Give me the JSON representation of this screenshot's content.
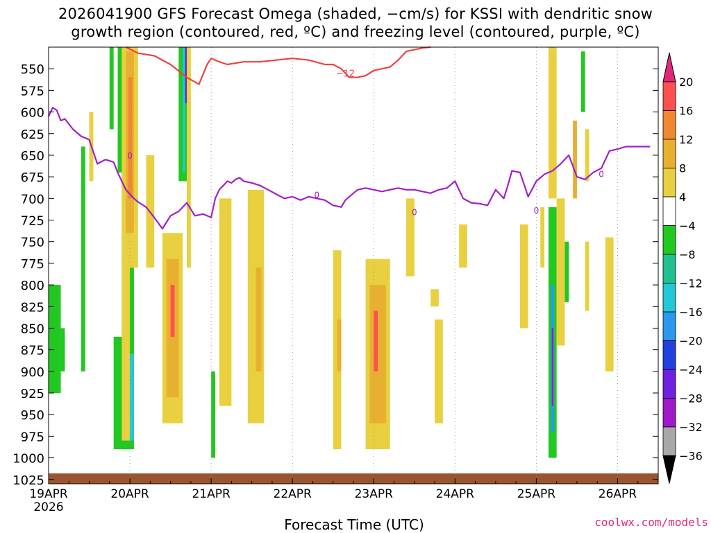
{
  "title": {
    "line1": "2026041900 GFS Forecast Omega (shaded, −cm/s) for KSSI with dendritic snow",
    "line2": "growth region (contoured, red, ºC) and freezing level (contoured, purple, ºC)"
  },
  "credit": "coolwx.com/models",
  "chart_data": {
    "type": "heatmap",
    "title": "2026041900 GFS Forecast Omega (shaded, −cm/s) for KSSI with dendritic snow growth region (contoured, red, ºC) and freezing level (contoured, purple, ºC)",
    "xlabel": "Forecast Time (UTC)",
    "ylabel": "",
    "x_ticks": [
      "19APR\n2026",
      "20APR",
      "21APR",
      "22APR",
      "23APR",
      "24APR",
      "25APR",
      "26APR"
    ],
    "x_tick_labels": [
      {
        "label": "19APR",
        "sub": "2026"
      },
      {
        "label": "20APR",
        "sub": ""
      },
      {
        "label": "21APR",
        "sub": ""
      },
      {
        "label": "22APR",
        "sub": ""
      },
      {
        "label": "23APR",
        "sub": ""
      },
      {
        "label": "24APR",
        "sub": ""
      },
      {
        "label": "25APR",
        "sub": ""
      },
      {
        "label": "26APR",
        "sub": ""
      }
    ],
    "xlim_days": [
      0,
      7.5
    ],
    "y_ticks": [
      550,
      575,
      600,
      625,
      650,
      675,
      700,
      725,
      750,
      775,
      800,
      825,
      850,
      875,
      900,
      925,
      950,
      975,
      1000,
      1025
    ],
    "ylim_hpa": [
      525,
      1030
    ],
    "colorbar": {
      "labels": [
        "20",
        "16",
        "12",
        "8",
        "4",
        "−4",
        "−8",
        "−12",
        "−16",
        "−20",
        "−24",
        "−28",
        "−32",
        "−36"
      ],
      "colors": [
        "#ff5050",
        "#f08830",
        "#e8b030",
        "#e8d040",
        "#ffffff",
        "#22c822",
        "#20c090",
        "#20c8d8",
        "#2898f0",
        "#2040e0",
        "#7020e0",
        "#a018c8",
        "#a8a8a8"
      ],
      "top_color": "#e0287a",
      "bottom_color": "#000000"
    },
    "contour_labels": {
      "dgz": "−12",
      "freezing": "0"
    },
    "dgz_line": {
      "color": "#f04040",
      "x": [
        0.95,
        1.1,
        1.3,
        1.5,
        1.7,
        1.85,
        1.95,
        2.0,
        2.1,
        2.2,
        2.4,
        2.6,
        2.8,
        3.0,
        3.2,
        3.4,
        3.5,
        3.6,
        3.7,
        3.8,
        3.9,
        4.0,
        4.1,
        4.2,
        4.3,
        4.4,
        4.5,
        4.6,
        4.7
      ],
      "y": [
        525,
        532,
        535,
        545,
        560,
        568,
        545,
        538,
        542,
        545,
        542,
        542,
        540,
        538,
        540,
        545,
        545,
        550,
        560,
        560,
        558,
        552,
        550,
        548,
        540,
        530,
        528,
        526,
        525
      ]
    },
    "freezing_line": {
      "color": "#a020c8",
      "x": [
        0.0,
        0.05,
        0.1,
        0.15,
        0.2,
        0.3,
        0.4,
        0.5,
        0.6,
        0.7,
        0.8,
        0.85,
        0.9,
        0.95,
        1.0,
        1.05,
        1.1,
        1.2,
        1.3,
        1.4,
        1.5,
        1.6,
        1.7,
        1.8,
        1.9,
        2.0,
        2.05,
        2.1,
        2.15,
        2.2,
        2.25,
        2.3,
        2.35,
        2.4,
        2.5,
        2.6,
        2.7,
        2.8,
        2.9,
        3.0,
        3.1,
        3.2,
        3.3,
        3.4,
        3.5,
        3.6,
        3.65,
        3.7,
        3.75,
        3.8,
        3.9,
        4.0,
        4.1,
        4.2,
        4.3,
        4.4,
        4.5,
        4.6,
        4.7,
        4.8,
        4.9,
        5.0,
        5.1,
        5.2,
        5.3,
        5.4,
        5.5,
        5.6,
        5.65,
        5.7,
        5.8,
        5.9,
        6.0,
        6.1,
        6.2,
        6.3,
        6.4,
        6.5,
        6.6,
        6.7,
        6.8,
        6.9,
        7.0,
        7.1,
        7.2,
        7.3,
        7.4
      ],
      "y": [
        605,
        595,
        598,
        610,
        608,
        620,
        628,
        632,
        660,
        655,
        658,
        670,
        680,
        690,
        695,
        700,
        704,
        710,
        722,
        735,
        720,
        715,
        705,
        720,
        718,
        722,
        700,
        690,
        685,
        680,
        682,
        678,
        676,
        680,
        682,
        685,
        690,
        695,
        700,
        698,
        702,
        698,
        700,
        702,
        708,
        710,
        702,
        698,
        694,
        690,
        688,
        690,
        692,
        690,
        688,
        690,
        690,
        692,
        694,
        690,
        688,
        680,
        700,
        705,
        706,
        708,
        690,
        700,
        685,
        668,
        670,
        698,
        680,
        672,
        668,
        660,
        650,
        675,
        678,
        670,
        665,
        645,
        643,
        640,
        640,
        640,
        640
      ]
    },
    "omega_cells": [
      {
        "x0": 0.0,
        "x1": 0.15,
        "p0": 800,
        "p1": 925,
        "level": -5
      },
      {
        "x0": 0.15,
        "x1": 0.2,
        "p0": 850,
        "p1": 900,
        "level": -8
      },
      {
        "x0": 0.4,
        "x1": 0.45,
        "p0": 640,
        "p1": 900,
        "level": -5
      },
      {
        "x0": 0.5,
        "x1": 0.55,
        "p0": 600,
        "p1": 680,
        "level": 5
      },
      {
        "x0": 0.75,
        "x1": 0.8,
        "p0": 525,
        "p1": 620,
        "level": -5
      },
      {
        "x0": 0.85,
        "x1": 0.95,
        "p0": 525,
        "p1": 670,
        "level": -5
      },
      {
        "x0": 0.8,
        "x1": 0.95,
        "p0": 860,
        "p1": 990,
        "level": -5
      },
      {
        "x0": 0.9,
        "x1": 1.05,
        "p0": 650,
        "p1": 990,
        "level": -8
      },
      {
        "x0": 0.95,
        "x1": 1.05,
        "p0": 880,
        "p1": 980,
        "level": -14
      },
      {
        "x0": 0.9,
        "x1": 1.1,
        "p0": 525,
        "p1": 780,
        "level": 5
      },
      {
        "x0": 0.95,
        "x1": 1.05,
        "p0": 530,
        "p1": 740,
        "level": 10
      },
      {
        "x0": 0.98,
        "x1": 1.03,
        "p0": 560,
        "p1": 700,
        "level": 14
      },
      {
        "x0": 0.9,
        "x1": 1.0,
        "p0": 760,
        "p1": 980,
        "level": 5
      },
      {
        "x0": 1.2,
        "x1": 1.3,
        "p0": 650,
        "p1": 780,
        "level": 5
      },
      {
        "x0": 1.6,
        "x1": 1.7,
        "p0": 525,
        "p1": 680,
        "level": -5
      },
      {
        "x0": 1.65,
        "x1": 1.68,
        "p0": 525,
        "p1": 670,
        "level": -14
      },
      {
        "x0": 1.68,
        "x1": 1.71,
        "p0": 525,
        "p1": 590,
        "level": -25
      },
      {
        "x0": 1.7,
        "x1": 1.75,
        "p0": 525,
        "p1": 780,
        "level": 5
      },
      {
        "x0": 1.4,
        "x1": 1.65,
        "p0": 740,
        "p1": 960,
        "level": 5
      },
      {
        "x0": 1.45,
        "x1": 1.6,
        "p0": 770,
        "p1": 930,
        "level": 10
      },
      {
        "x0": 1.5,
        "x1": 1.55,
        "p0": 800,
        "p1": 860,
        "level": 18
      },
      {
        "x0": 2.1,
        "x1": 2.25,
        "p0": 700,
        "p1": 940,
        "level": 5
      },
      {
        "x0": 2.0,
        "x1": 2.05,
        "p0": 900,
        "p1": 1000,
        "level": -5
      },
      {
        "x0": 2.45,
        "x1": 2.65,
        "p0": 690,
        "p1": 960,
        "level": 5
      },
      {
        "x0": 2.55,
        "x1": 2.62,
        "p0": 780,
        "p1": 900,
        "level": 10
      },
      {
        "x0": 3.5,
        "x1": 3.6,
        "p0": 760,
        "p1": 990,
        "level": 5
      },
      {
        "x0": 3.55,
        "x1": 3.6,
        "p0": 840,
        "p1": 900,
        "level": 10
      },
      {
        "x0": 3.9,
        "x1": 4.2,
        "p0": 770,
        "p1": 990,
        "level": 5
      },
      {
        "x0": 3.95,
        "x1": 4.15,
        "p0": 800,
        "p1": 960,
        "level": 10
      },
      {
        "x0": 4.0,
        "x1": 4.05,
        "p0": 830,
        "p1": 900,
        "level": 18
      },
      {
        "x0": 4.7,
        "x1": 4.8,
        "p0": 805,
        "p1": 825,
        "level": 5
      },
      {
        "x0": 4.75,
        "x1": 4.85,
        "p0": 840,
        "p1": 960,
        "level": 5
      },
      {
        "x0": 4.4,
        "x1": 4.5,
        "p0": 700,
        "p1": 790,
        "level": 5
      },
      {
        "x0": 5.05,
        "x1": 5.15,
        "p0": 730,
        "p1": 780,
        "level": 5
      },
      {
        "x0": 6.15,
        "x1": 6.25,
        "p0": 710,
        "p1": 1000,
        "level": -8
      },
      {
        "x0": 6.18,
        "x1": 6.22,
        "p0": 800,
        "p1": 970,
        "level": -18
      },
      {
        "x0": 6.19,
        "x1": 6.21,
        "p0": 850,
        "p1": 940,
        "level": -29
      },
      {
        "x0": 6.35,
        "x1": 6.4,
        "p0": 750,
        "p1": 820,
        "level": -5
      },
      {
        "x0": 6.15,
        "x1": 6.25,
        "p0": 525,
        "p1": 700,
        "level": 5
      },
      {
        "x0": 6.25,
        "x1": 6.35,
        "p0": 700,
        "p1": 870,
        "level": 5
      },
      {
        "x0": 6.45,
        "x1": 6.5,
        "p0": 610,
        "p1": 700,
        "level": 10
      },
      {
        "x0": 6.55,
        "x1": 6.6,
        "p0": 530,
        "p1": 600,
        "level": -5
      },
      {
        "x0": 6.6,
        "x1": 6.65,
        "p0": 750,
        "p1": 830,
        "level": 5
      },
      {
        "x0": 6.6,
        "x1": 6.65,
        "p0": 620,
        "p1": 680,
        "level": 5
      },
      {
        "x0": 6.05,
        "x1": 6.1,
        "p0": 710,
        "p1": 780,
        "level": 5
      },
      {
        "x0": 5.8,
        "x1": 5.9,
        "p0": 730,
        "p1": 850,
        "level": 5
      },
      {
        "x0": 6.85,
        "x1": 6.95,
        "p0": 745,
        "p1": 900,
        "level": 5
      }
    ],
    "ground_color": "#9a5530"
  }
}
